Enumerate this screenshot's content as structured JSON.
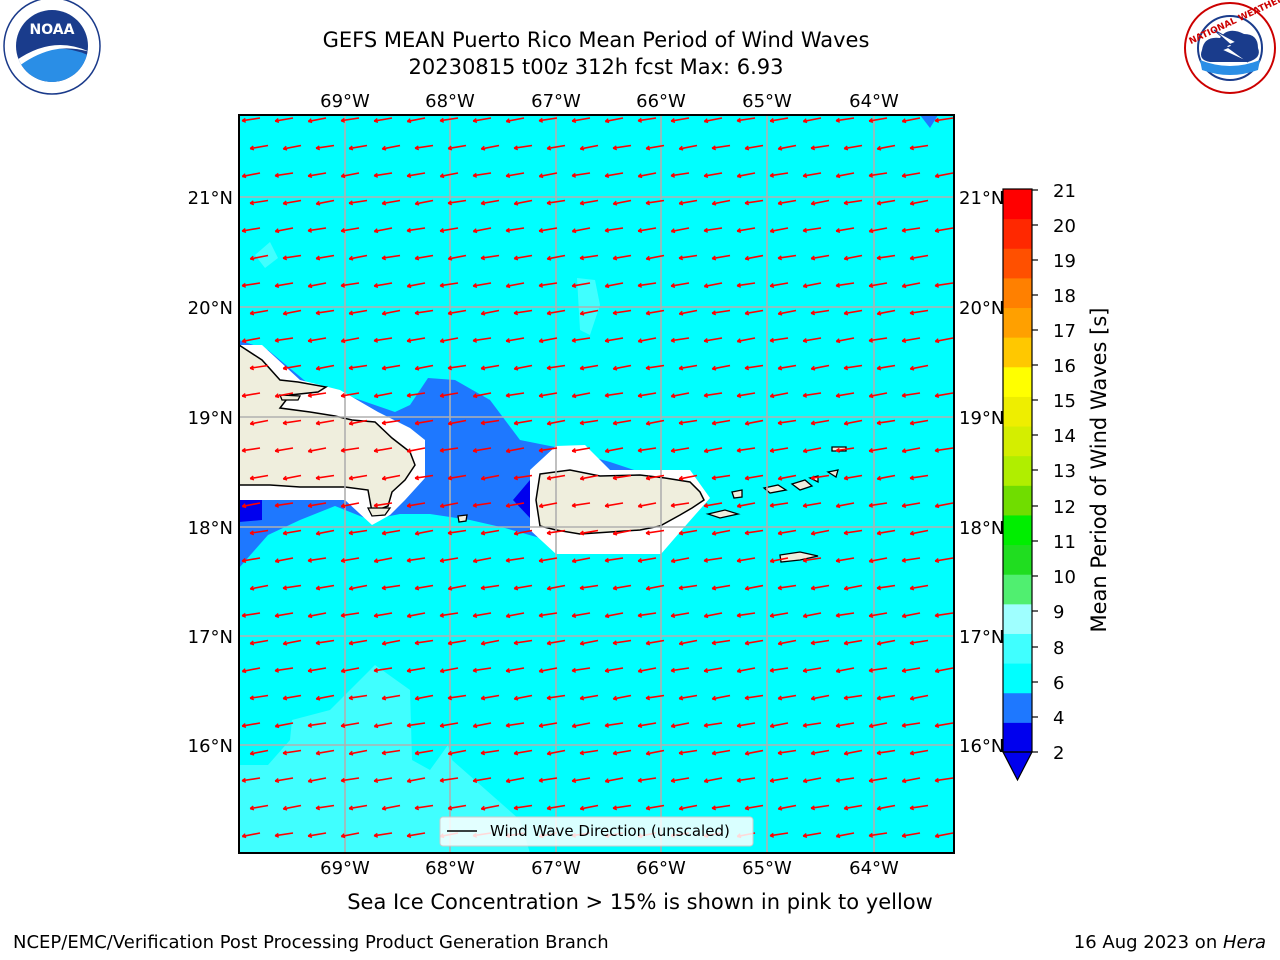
{
  "title": {
    "line1": "GEFS MEAN Puerto Rico Mean Period of Wind Waves",
    "line2": "20230815 t00z 312h fcst   Max: 6.93"
  },
  "map": {
    "lon_labels": [
      "69°W",
      "68°W",
      "67°W",
      "66°W",
      "65°W",
      "64°W"
    ],
    "lat_labels": [
      "21°N",
      "20°N",
      "19°N",
      "18°N",
      "17°N",
      "16°N"
    ],
    "legend_label": "Wind Wave Direction (unscaled)",
    "ocean_color": "#00ffff",
    "land_color": "#efeedd",
    "arrow_color": "#ff0000"
  },
  "colorbar": {
    "label": "Mean Period of Wind Waves [s]",
    "ticks": [
      "2",
      "4",
      "6",
      "8",
      "9",
      "10",
      "11",
      "12",
      "13",
      "14",
      "15",
      "16",
      "17",
      "18",
      "19",
      "20",
      "21"
    ],
    "colors": [
      "#0000ee",
      "#1e78ff",
      "#00ffff",
      "#40ffff",
      "#9fffff",
      "#50ef70",
      "#20dd20",
      "#00ee00",
      "#70dd00",
      "#b0ee00",
      "#d4ee00",
      "#eeee00",
      "#ffff00",
      "#ffc800",
      "#ffa000",
      "#ff8000",
      "#ff5000",
      "#ff2800",
      "#ff0000"
    ],
    "under_color": "#0000ee"
  },
  "logos": {
    "noaa_text": "NOAA",
    "nws_text": "NATIONAL WEATHER SERVICE"
  },
  "ice_note": "Sea Ice Concentration > 15% is shown in pink to yellow",
  "footer": {
    "left": "NCEP/EMC/Verification Post Processing Product Generation Branch",
    "right_prefix": "16 Aug 2023 on ",
    "right_machine": "Hera"
  }
}
